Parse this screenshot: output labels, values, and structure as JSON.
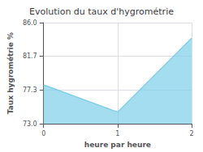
{
  "chart_data": {
    "type": "area",
    "title": "Evolution du taux d'hygrométrie",
    "x_label": "heure par heure",
    "y_label": "Taux hygrométrie %",
    "x": [
      0,
      1,
      2
    ],
    "values": [
      78.0,
      74.5,
      84.0
    ],
    "color": "#7ecfe8",
    "xlim": [
      0,
      2
    ],
    "xticks": [
      0,
      1,
      2
    ],
    "ylim": [
      73.0,
      86.0
    ],
    "yticks": [
      {
        "value": 73.0,
        "label": "73.0"
      },
      {
        "value": 77.3,
        "label": "77.3"
      },
      {
        "value": 81.7,
        "label": "81.7"
      },
      {
        "value": 86.0,
        "label": "86.0"
      }
    ],
    "grid": true
  }
}
